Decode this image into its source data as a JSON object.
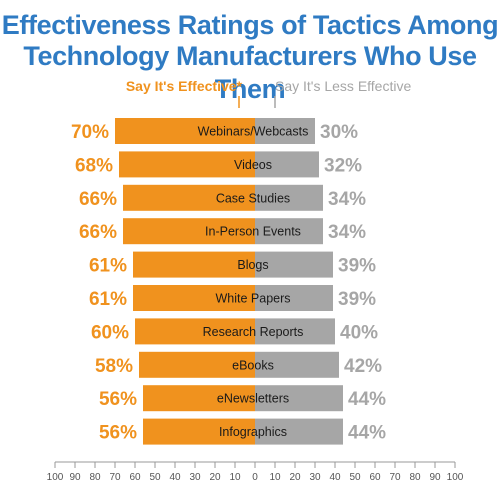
{
  "title_lines": [
    "Effectiveness Ratings of Tactics Among",
    "Technology Manufacturers Who Use Them"
  ],
  "colors": {
    "title": "#2f7bc3",
    "effective": "#f0921e",
    "less_effective": "#a6a6a6",
    "axis": "#999999"
  },
  "chart_data": {
    "type": "bar",
    "orientation": "diverging-horizontal",
    "title": "Effectiveness Ratings of Tactics Among Technology Manufacturers Who Use Them",
    "categories": [
      "Webinars/Webcasts",
      "Videos",
      "Case Studies",
      "In-Person Events",
      "Blogs",
      "White Papers",
      "Research Reports",
      "eBooks",
      "eNewsletters",
      "Infographics"
    ],
    "series": [
      {
        "name": "Say It's Effective*",
        "values": [
          70,
          68,
          66,
          66,
          61,
          61,
          60,
          58,
          56,
          56
        ]
      },
      {
        "name": "Say It's Less Effective",
        "values": [
          30,
          32,
          34,
          34,
          39,
          39,
          40,
          42,
          44,
          44
        ]
      }
    ],
    "value_labels_left": [
      "70%",
      "68%",
      "66%",
      "66%",
      "61%",
      "61%",
      "60%",
      "58%",
      "56%",
      "56%"
    ],
    "value_labels_right": [
      "30%",
      "32%",
      "34%",
      "34%",
      "39%",
      "39%",
      "40%",
      "42%",
      "44%",
      "44%"
    ],
    "axis_ticks": [
      "100",
      "90",
      "80",
      "70",
      "60",
      "50",
      "40",
      "30",
      "20",
      "10",
      "0",
      "10",
      "20",
      "30",
      "40",
      "50",
      "60",
      "70",
      "80",
      "90",
      "100"
    ],
    "xlim_left": [
      100,
      0
    ],
    "xlim_right": [
      0,
      100
    ],
    "legend_position": "top"
  }
}
